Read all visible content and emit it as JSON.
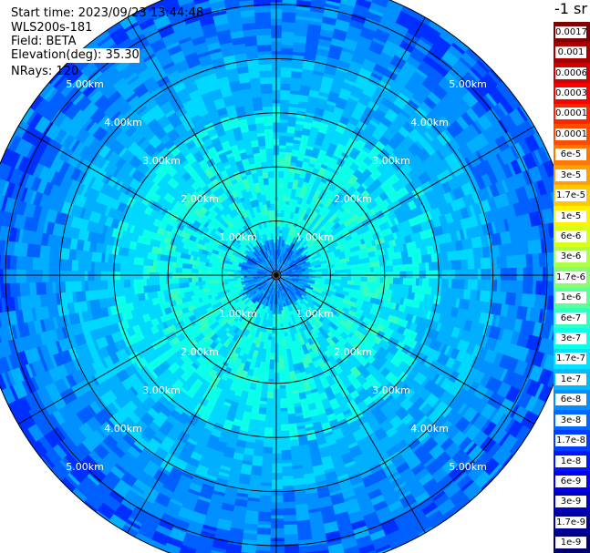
{
  "header": {
    "start_time": "Start time: 2023/09/23 13:44:48",
    "instrument": "WLS200s-181",
    "field": "Field: BETA",
    "elevation": "Elevation(deg): 35.30",
    "nrays": "NRays: 120"
  },
  "colorbar": {
    "unit_label": "-1 sr",
    "levels": [
      "0.0017",
      "0.001",
      "0.0006",
      "0.0003",
      "0.00017",
      "0.0001",
      "6e-5",
      "3e-5",
      "1.7e-5",
      "1e-5",
      "6e-6",
      "3e-6",
      "1.7e-6",
      "1e-6",
      "6e-7",
      "3e-7",
      "1.7e-7",
      "1e-7",
      "6e-8",
      "3e-8",
      "1.7e-8",
      "1e-8",
      "6e-9",
      "3e-9",
      "1.7e-9",
      "1e-9"
    ],
    "colors": [
      "#7f0000",
      "#a80000",
      "#d10000",
      "#fa0000",
      "#ff2400",
      "#ff4d00",
      "#ff7600",
      "#ff9f00",
      "#ffc800",
      "#fff100",
      "#d8ff1c",
      "#afff45",
      "#86ff6e",
      "#5dff97",
      "#34ffc0",
      "#0bffe9",
      "#00e2ff",
      "#00b9ff",
      "#0090ff",
      "#0067ff",
      "#003eff",
      "#0015ff",
      "#0000ed",
      "#0000c4",
      "#00009b",
      "#000072"
    ]
  },
  "plot": {
    "max_range_km": 5.5,
    "ring_step_km": 1.0,
    "spoke_step_deg": 30,
    "range_labels": [
      "1.00km",
      "2.00km",
      "3.00km",
      "4.00km",
      "5.00km"
    ],
    "palette": {
      "deep_blue": "#0030ff",
      "blue": "#0060ff",
      "azure": "#0090ff",
      "sky": "#00b0ff",
      "cyan": "#00d8ff",
      "aqua": "#0bffe9",
      "mint": "#34ffc0"
    }
  }
}
